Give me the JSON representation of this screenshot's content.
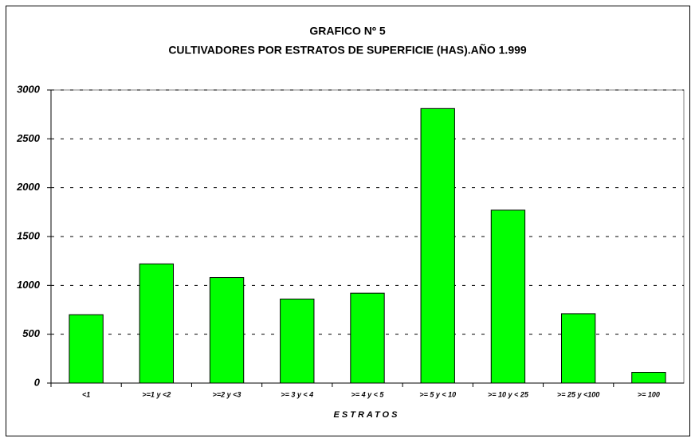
{
  "chart_data": {
    "type": "bar",
    "title": "GRAFICO Nº 5",
    "subtitle": "CULTIVADORES POR ESTRATOS DE SUPERFICIE (HAS).AÑO 1.999",
    "x_label": "ESTRATOS",
    "categories": [
      "<1",
      ">=1 y <2",
      ">=2 y <3",
      ">= 3 y < 4",
      ">= 4 y < 5",
      ">= 5 y < 10",
      ">= 10 y < 25",
      ">= 25 y <100",
      ">= 100"
    ],
    "values": [
      700,
      1220,
      1080,
      860,
      920,
      2810,
      1770,
      710,
      110
    ],
    "color": "#00ff00",
    "ylim": [
      0,
      3000
    ],
    "yticks": [
      0,
      500,
      1000,
      1500,
      2000,
      2500,
      3000
    ],
    "grid": true
  }
}
